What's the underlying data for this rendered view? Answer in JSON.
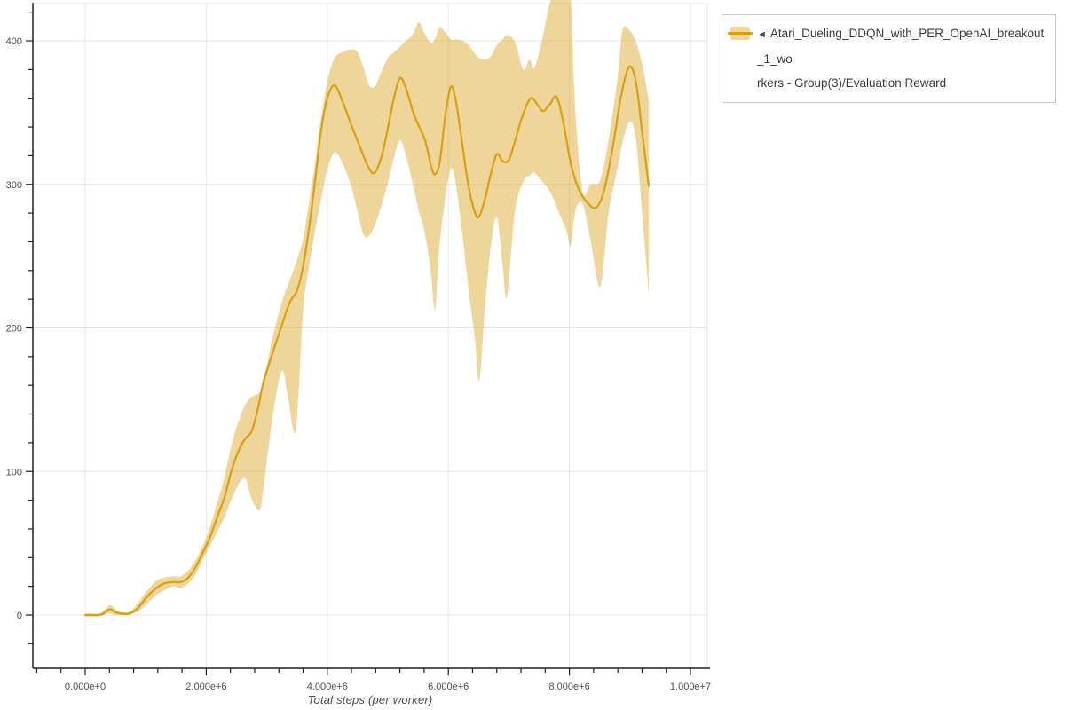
{
  "colors": {
    "line": "#D7A012",
    "band": "#DAA520",
    "band_opacity": 0.45,
    "band_solid": "#EFD59B",
    "grid": "#e6e6e6",
    "axis": "#1f1f1f",
    "tick_label": "#4d4d4d"
  },
  "legend": {
    "collapse_icon": "◄",
    "entry": {
      "line1": "Atari_Dueling_DDQN_with_PER_OpenAI_breakout_1_wo",
      "line2": "rkers - Group(3)/Evaluation Reward"
    }
  },
  "chart_data": {
    "type": "line",
    "title": "",
    "xlabel": "Total steps (per worker)",
    "ylabel": "",
    "x_unit": "steps (millions)",
    "xlim": [
      -0.88,
      10.28
    ],
    "ylim": [
      -37,
      426
    ],
    "grid": true,
    "legend_position": "top-right",
    "x_ticks": [
      {
        "m": 0,
        "label": "0.000e+0"
      },
      {
        "m": 2,
        "label": "2.000e+6"
      },
      {
        "m": 4,
        "label": "4.000e+6"
      },
      {
        "m": 6,
        "label": "6.000e+6"
      },
      {
        "m": 8,
        "label": "8.000e+6"
      },
      {
        "m": 10,
        "label": "1.000e+7"
      }
    ],
    "y_ticks": [
      {
        "v": 0,
        "label": "0"
      },
      {
        "v": 100,
        "label": "100"
      },
      {
        "v": 200,
        "label": "200"
      },
      {
        "v": 300,
        "label": "300"
      },
      {
        "v": 400,
        "label": "400"
      }
    ],
    "x_minor": {
      "start": -0.8,
      "end": 10.0,
      "step": 0.4
    },
    "y_minor": {
      "start": -20,
      "end": 420,
      "step": 20
    },
    "series": [
      {
        "name": "Atari_Dueling_DDQN_with_PER_OpenAI_breakout_1_workers - Group(3)/Evaluation Reward",
        "metric": "Evaluation Reward",
        "line": [
          [
            0.0,
            0
          ],
          [
            0.12,
            0
          ],
          [
            0.22,
            0
          ],
          [
            0.3,
            1
          ],
          [
            0.36,
            3
          ],
          [
            0.42,
            4
          ],
          [
            0.5,
            2
          ],
          [
            0.6,
            1
          ],
          [
            0.72,
            1
          ],
          [
            0.85,
            4
          ],
          [
            0.95,
            9
          ],
          [
            1.05,
            14
          ],
          [
            1.18,
            19
          ],
          [
            1.3,
            22
          ],
          [
            1.45,
            23
          ],
          [
            1.58,
            23
          ],
          [
            1.7,
            26
          ],
          [
            1.82,
            33
          ],
          [
            1.95,
            44
          ],
          [
            2.05,
            53
          ],
          [
            2.18,
            68
          ],
          [
            2.3,
            82
          ],
          [
            2.42,
            101
          ],
          [
            2.55,
            116
          ],
          [
            2.65,
            123
          ],
          [
            2.75,
            128
          ],
          [
            2.85,
            143
          ],
          [
            2.95,
            163
          ],
          [
            3.1,
            183
          ],
          [
            3.25,
            202
          ],
          [
            3.38,
            218
          ],
          [
            3.5,
            226
          ],
          [
            3.6,
            243
          ],
          [
            3.7,
            270
          ],
          [
            3.8,
            303
          ],
          [
            3.9,
            338
          ],
          [
            4.0,
            360
          ],
          [
            4.12,
            369
          ],
          [
            4.25,
            358
          ],
          [
            4.4,
            341
          ],
          [
            4.55,
            325
          ],
          [
            4.68,
            312
          ],
          [
            4.78,
            308
          ],
          [
            4.9,
            320
          ],
          [
            5.0,
            339
          ],
          [
            5.1,
            360
          ],
          [
            5.2,
            374
          ],
          [
            5.3,
            367
          ],
          [
            5.42,
            350
          ],
          [
            5.52,
            340
          ],
          [
            5.62,
            330
          ],
          [
            5.72,
            312
          ],
          [
            5.78,
            307
          ],
          [
            5.86,
            316
          ],
          [
            5.95,
            348
          ],
          [
            6.04,
            368
          ],
          [
            6.12,
            359
          ],
          [
            6.22,
            331
          ],
          [
            6.32,
            302
          ],
          [
            6.42,
            283
          ],
          [
            6.5,
            277
          ],
          [
            6.6,
            289
          ],
          [
            6.7,
            307
          ],
          [
            6.8,
            321
          ],
          [
            6.9,
            316
          ],
          [
            7.0,
            317
          ],
          [
            7.1,
            330
          ],
          [
            7.22,
            347
          ],
          [
            7.36,
            360
          ],
          [
            7.48,
            355
          ],
          [
            7.57,
            351
          ],
          [
            7.68,
            356
          ],
          [
            7.79,
            361
          ],
          [
            7.9,
            343
          ],
          [
            8.02,
            315
          ],
          [
            8.15,
            297
          ],
          [
            8.3,
            287
          ],
          [
            8.45,
            284
          ],
          [
            8.58,
            297
          ],
          [
            8.72,
            327
          ],
          [
            8.86,
            363
          ],
          [
            8.99,
            382
          ],
          [
            9.1,
            371
          ],
          [
            9.2,
            337
          ],
          [
            9.31,
            299
          ]
        ],
        "band": [
          [
            0.0,
            -1,
            1
          ],
          [
            0.12,
            -1,
            1
          ],
          [
            0.22,
            -1,
            1
          ],
          [
            0.3,
            0,
            3
          ],
          [
            0.36,
            1,
            5
          ],
          [
            0.42,
            1,
            7
          ],
          [
            0.5,
            0,
            4
          ],
          [
            0.6,
            0,
            2
          ],
          [
            0.72,
            0,
            2
          ],
          [
            0.85,
            2,
            7
          ],
          [
            0.95,
            5,
            13
          ],
          [
            1.05,
            9,
            18
          ],
          [
            1.18,
            14,
            24
          ],
          [
            1.3,
            17,
            26
          ],
          [
            1.45,
            20,
            27
          ],
          [
            1.58,
            19,
            27
          ],
          [
            1.7,
            22,
            31
          ],
          [
            1.82,
            28,
            38
          ],
          [
            1.95,
            39,
            49
          ],
          [
            2.05,
            47,
            60
          ],
          [
            2.18,
            58,
            78
          ],
          [
            2.3,
            68,
            96
          ],
          [
            2.42,
            81,
            119
          ],
          [
            2.55,
            92,
            137
          ],
          [
            2.65,
            95,
            147
          ],
          [
            2.75,
            81,
            152
          ],
          [
            2.88,
            73,
            155
          ],
          [
            2.95,
            90,
            163
          ],
          [
            3.1,
            139,
            194
          ],
          [
            3.25,
            170,
            218
          ],
          [
            3.35,
            152,
            230
          ],
          [
            3.48,
            129,
            245
          ],
          [
            3.6,
            212,
            262
          ],
          [
            3.7,
            243,
            288
          ],
          [
            3.8,
            268,
            316
          ],
          [
            3.9,
            290,
            347
          ],
          [
            4.0,
            310,
            372
          ],
          [
            4.12,
            322,
            388
          ],
          [
            4.25,
            315,
            392
          ],
          [
            4.4,
            298,
            394
          ],
          [
            4.5,
            281,
            392
          ],
          [
            4.6,
            265,
            381
          ],
          [
            4.68,
            264,
            370
          ],
          [
            4.78,
            271,
            368
          ],
          [
            4.9,
            286,
            379
          ],
          [
            5.0,
            301,
            388
          ],
          [
            5.1,
            318,
            392
          ],
          [
            5.2,
            331,
            396
          ],
          [
            5.3,
            320,
            400
          ],
          [
            5.42,
            299,
            405
          ],
          [
            5.51,
            282,
            413
          ],
          [
            5.6,
            268,
            406
          ],
          [
            5.7,
            243,
            399
          ],
          [
            5.78,
            213,
            401
          ],
          [
            5.85,
            256,
            409
          ],
          [
            5.95,
            291,
            406
          ],
          [
            6.04,
            311,
            401
          ],
          [
            6.12,
            301,
            401
          ],
          [
            6.24,
            262,
            400
          ],
          [
            6.35,
            221,
            396
          ],
          [
            6.44,
            192,
            391
          ],
          [
            6.51,
            163,
            388
          ],
          [
            6.6,
            211,
            387
          ],
          [
            6.7,
            256,
            389
          ],
          [
            6.8,
            277,
            397
          ],
          [
            6.9,
            242,
            401
          ],
          [
            6.97,
            222,
            404
          ],
          [
            7.1,
            281,
            399
          ],
          [
            7.24,
            302,
            380
          ],
          [
            7.34,
            306,
            387
          ],
          [
            7.42,
            308,
            381
          ],
          [
            7.55,
            302,
            401
          ],
          [
            7.68,
            295,
            427
          ],
          [
            7.8,
            283,
            433
          ],
          [
            7.95,
            268,
            433
          ],
          [
            8.02,
            257,
            431
          ],
          [
            8.1,
            282,
            350
          ],
          [
            8.22,
            286,
            295
          ],
          [
            8.35,
            261,
            300
          ],
          [
            8.51,
            229,
            303
          ],
          [
            8.65,
            281,
            332
          ],
          [
            8.8,
            312,
            376
          ],
          [
            8.88,
            330,
            408
          ],
          [
            9.0,
            344,
            407
          ],
          [
            9.1,
            331,
            399
          ],
          [
            9.2,
            281,
            384
          ],
          [
            9.31,
            224,
            359
          ]
        ]
      }
    ]
  }
}
